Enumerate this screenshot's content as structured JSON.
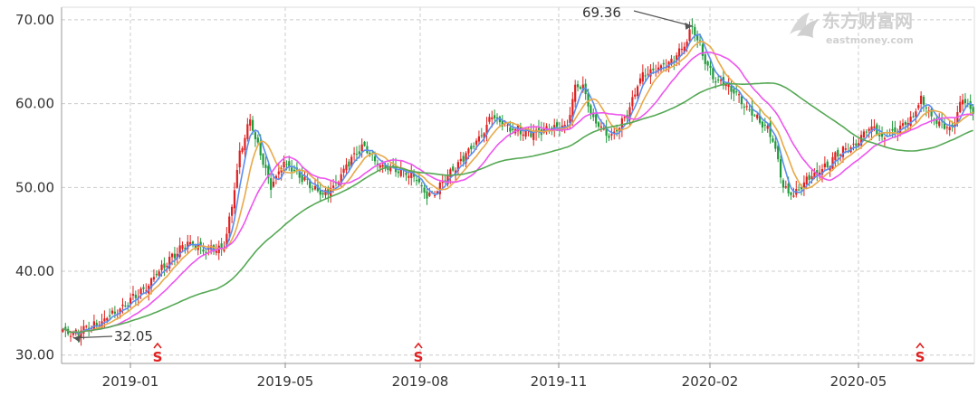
{
  "chart_data": {
    "type": "candlestick",
    "title": "",
    "xlabel": "",
    "ylabel": "",
    "ylim": [
      29,
      71.5
    ],
    "y_ticks": [
      "30.00",
      "40.00",
      "50.00",
      "60.00",
      "70.00"
    ],
    "y_tick_values": [
      30,
      40,
      50,
      60,
      70
    ],
    "x_ticks": [
      "2019-01",
      "2019-05",
      "2019-08",
      "2019-11",
      "2020-02",
      "2020-05"
    ],
    "grid": true,
    "close_anchors": [
      [
        0,
        33.0
      ],
      [
        3,
        32.3
      ],
      [
        6,
        32.8
      ],
      [
        12,
        33.5
      ],
      [
        20,
        35.0
      ],
      [
        30,
        37.5
      ],
      [
        40,
        41.0
      ],
      [
        48,
        43.5
      ],
      [
        55,
        42.5
      ],
      [
        62,
        43.0
      ],
      [
        65,
        48.0
      ],
      [
        68,
        54.0
      ],
      [
        72,
        58.0
      ],
      [
        75,
        55.0
      ],
      [
        80,
        50.0
      ],
      [
        85,
        53.0
      ],
      [
        92,
        51.0
      ],
      [
        100,
        49.0
      ],
      [
        105,
        50.5
      ],
      [
        110,
        53.0
      ],
      [
        115,
        55.0
      ],
      [
        120,
        53.0
      ],
      [
        128,
        52.0
      ],
      [
        135,
        51.5
      ],
      [
        140,
        49.0
      ],
      [
        143,
        49.5
      ],
      [
        150,
        52.0
      ],
      [
        155,
        54.0
      ],
      [
        160,
        56.0
      ],
      [
        165,
        58.5
      ],
      [
        172,
        57.0
      ],
      [
        180,
        56.5
      ],
      [
        188,
        57.0
      ],
      [
        194,
        57.5
      ],
      [
        197,
        62.0
      ],
      [
        200,
        62.0
      ],
      [
        204,
        58.0
      ],
      [
        210,
        56.0
      ],
      [
        216,
        58.0
      ],
      [
        222,
        63.0
      ],
      [
        228,
        64.0
      ],
      [
        234,
        65.0
      ],
      [
        239,
        67.0
      ],
      [
        242,
        69.0
      ],
      [
        246,
        66.0
      ],
      [
        250,
        63.0
      ],
      [
        256,
        62.0
      ],
      [
        262,
        60.0
      ],
      [
        268,
        58.0
      ],
      [
        273,
        56.0
      ],
      [
        277,
        50.0
      ],
      [
        281,
        49.0
      ],
      [
        286,
        51.0
      ],
      [
        292,
        52.0
      ],
      [
        298,
        54.0
      ],
      [
        305,
        55.0
      ],
      [
        310,
        57.5
      ],
      [
        315,
        56.0
      ],
      [
        320,
        56.5
      ],
      [
        326,
        58.0
      ],
      [
        330,
        60.5
      ],
      [
        334,
        58.5
      ],
      [
        338,
        57.5
      ],
      [
        342,
        57.0
      ],
      [
        346,
        60.5
      ],
      [
        350,
        59.0
      ]
    ],
    "annotations": [
      {
        "label": "69.36",
        "value": 69.36,
        "point_index": 243
      },
      {
        "label": "32.05",
        "value": 32.05,
        "point_index": 3
      }
    ],
    "markers": [
      {
        "label": "S",
        "near_tick": "2019-03"
      },
      {
        "label": "S",
        "near_tick": "2019-08"
      },
      {
        "label": "S",
        "near_tick": "2020-06"
      }
    ],
    "series": [
      {
        "name": "",
        "type": "candles",
        "up_color": "#e02020",
        "down_color": "#1f9a3a"
      },
      {
        "name": "",
        "type": "ma",
        "period": 5,
        "color": "#5b8def"
      },
      {
        "name": "",
        "type": "ma",
        "period": 10,
        "color": "#e8a948"
      },
      {
        "name": "",
        "type": "ma",
        "period": 20,
        "color": "#ee55ee"
      },
      {
        "name": "",
        "type": "ma",
        "period": 60,
        "color": "#55a855"
      }
    ]
  },
  "watermark": {
    "cn": "东方财富网",
    "en": "eastmoney.com"
  }
}
